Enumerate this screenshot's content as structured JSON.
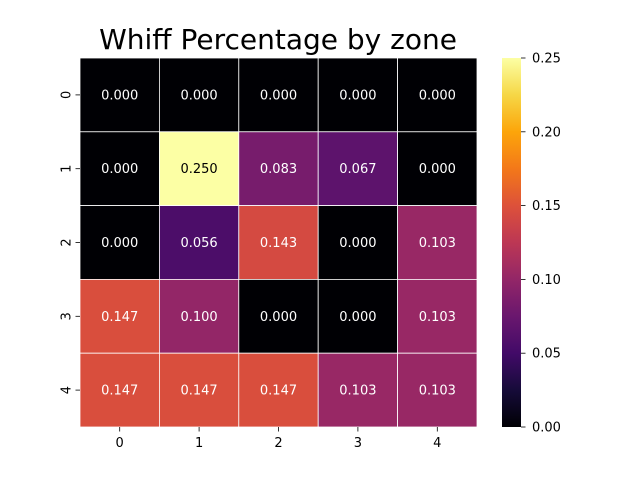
{
  "chart_data": {
    "type": "heatmap",
    "title": "Whiff Percentage by zone",
    "xlabel": "",
    "ylabel": "",
    "x_categories": [
      "0",
      "1",
      "2",
      "3",
      "4"
    ],
    "y_categories": [
      "0",
      "1",
      "2",
      "3",
      "4"
    ],
    "values": [
      [
        0.0,
        0.0,
        0.0,
        0.0,
        0.0
      ],
      [
        0.0,
        0.25,
        0.083,
        0.067,
        0.0
      ],
      [
        0.0,
        0.056,
        0.143,
        0.0,
        0.103
      ],
      [
        0.147,
        0.1,
        0.0,
        0.0,
        0.103
      ],
      [
        0.147,
        0.147,
        0.147,
        0.103,
        0.103
      ]
    ],
    "value_labels": [
      [
        "0.000",
        "0.000",
        "0.000",
        "0.000",
        "0.000"
      ],
      [
        "0.000",
        "0.250",
        "0.083",
        "0.067",
        "0.000"
      ],
      [
        "0.000",
        "0.056",
        "0.143",
        "0.000",
        "0.103"
      ],
      [
        "0.147",
        "0.100",
        "0.000",
        "0.000",
        "0.103"
      ],
      [
        "0.147",
        "0.147",
        "0.147",
        "0.103",
        "0.103"
      ]
    ],
    "colormap": "inferno",
    "vmin": 0.0,
    "vmax": 0.25,
    "colorbar_ticks": [
      0.0,
      0.05,
      0.1,
      0.15,
      0.2,
      0.25
    ],
    "colorbar_tick_labels": [
      "0.00",
      "0.05",
      "0.10",
      "0.15",
      "0.20",
      "0.25"
    ],
    "grid_line_color": "#ffffff",
    "annotation_color_dark_bg": "#ffffff",
    "annotation_color_light_bg": "#000000"
  }
}
